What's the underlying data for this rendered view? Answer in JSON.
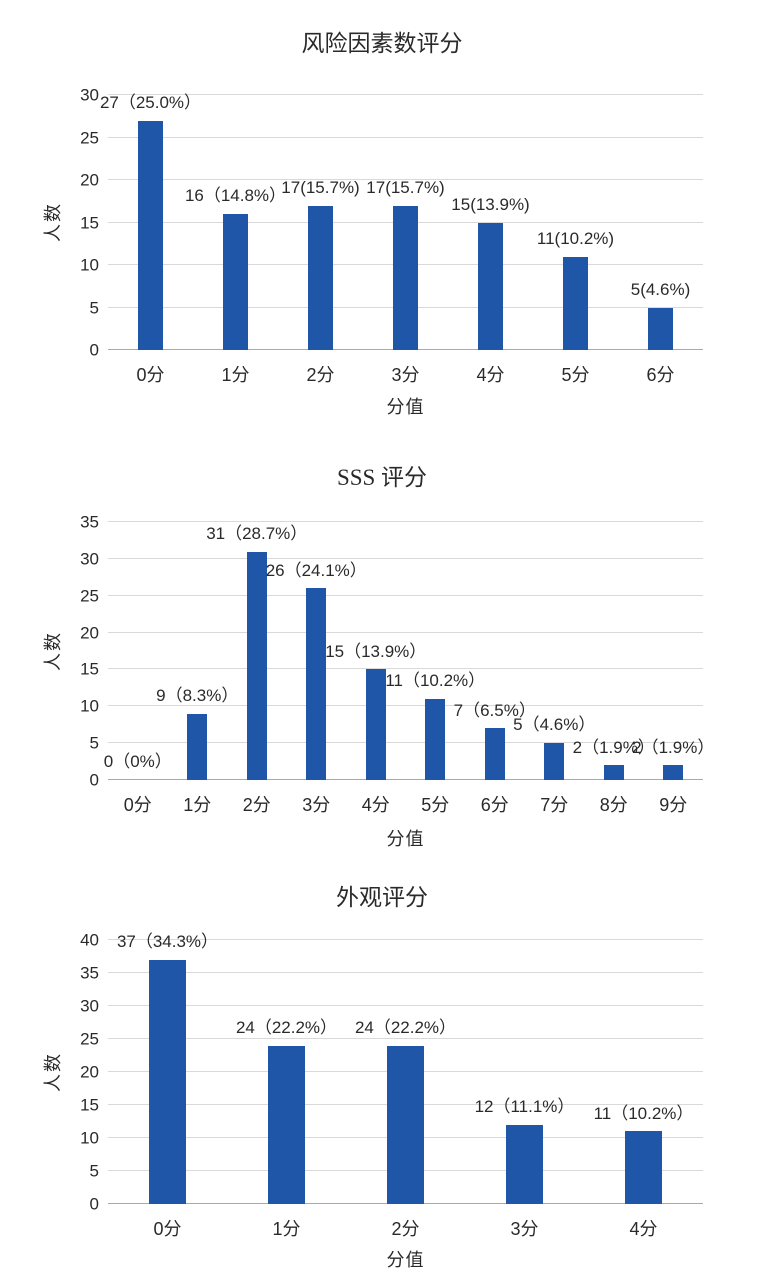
{
  "page": {
    "background": "#ffffff",
    "text_color": "#2a2a2a",
    "gridline_color": "#d9d9d9",
    "axis_color": "#aaaaaa"
  },
  "chart_data": [
    {
      "type": "bar",
      "title": "风险因素数评分",
      "xlabel": "分值",
      "ylabel": "人数",
      "ylim": [
        0,
        30
      ],
      "ytick_step": 5,
      "yticks": [
        0,
        5,
        10,
        15,
        20,
        25,
        30
      ],
      "grid": true,
      "legend": false,
      "bar_color": "#2056a8",
      "categories": [
        "0分",
        "1分",
        "2分",
        "3分",
        "4分",
        "5分",
        "6分"
      ],
      "values": [
        27,
        16,
        17,
        17,
        15,
        11,
        5
      ],
      "data_labels": [
        "27（25.0%）",
        "16（14.8%）",
        "17(15.7%)",
        "17(15.7%)",
        "15(13.9%)",
        "11(10.2%)",
        "5(4.6%)"
      ]
    },
    {
      "type": "bar",
      "title": "SSS 评分",
      "xlabel": "分值",
      "ylabel": "人数",
      "ylim": [
        0,
        35
      ],
      "ytick_step": 5,
      "yticks": [
        0,
        5,
        10,
        15,
        20,
        25,
        30,
        35
      ],
      "grid": true,
      "legend": false,
      "bar_color": "#2056a8",
      "categories": [
        "0分",
        "1分",
        "2分",
        "3分",
        "4分",
        "5分",
        "6分",
        "7分",
        "8分",
        "9分"
      ],
      "values": [
        0,
        9,
        31,
        26,
        15,
        11,
        7,
        5,
        2,
        2
      ],
      "data_labels": [
        "0（0%）",
        "9（8.3%）",
        "31（28.7%）",
        "26（24.1%）",
        "15（13.9%）",
        "11（10.2%）",
        "7（6.5%）",
        "5（4.6%）",
        "2（1.9%）",
        "2（1.9%）"
      ]
    },
    {
      "type": "bar",
      "title": "外观评分",
      "xlabel": "分值",
      "ylabel": "人数",
      "ylim": [
        0,
        40
      ],
      "ytick_step": 5,
      "yticks": [
        0,
        5,
        10,
        15,
        20,
        25,
        30,
        35,
        40
      ],
      "grid": true,
      "legend": false,
      "bar_color": "#2056a8",
      "categories": [
        "0分",
        "1分",
        "2分",
        "3分",
        "4分"
      ],
      "values": [
        37,
        24,
        24,
        12,
        11
      ],
      "data_labels": [
        "37（34.3%）",
        "24（22.2%）",
        "24（22.2%）",
        "12（11.1%）",
        "11（10.2%）"
      ]
    }
  ]
}
